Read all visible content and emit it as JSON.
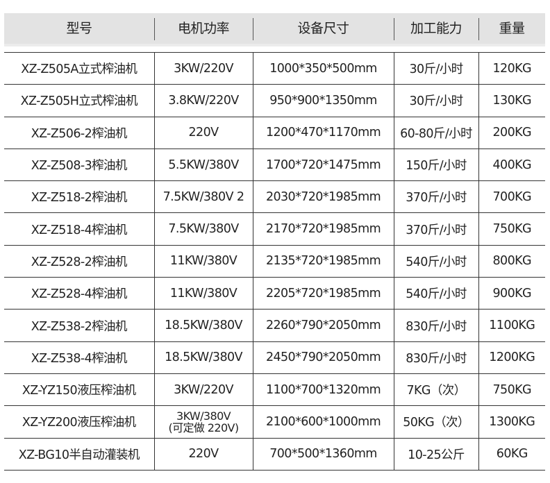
{
  "headers": [
    "型号",
    "电机功率",
    "设备尺寸",
    "加工能力",
    "重量"
  ],
  "rows": [
    [
      "XZ-Z505A立式榨油机",
      "3KW/220V",
      "1000*350*500mm",
      "30斤/小时",
      "120KG"
    ],
    [
      "XZ-Z505H立式榨油机",
      "3.8KW/220V",
      "950*900*1350mm",
      "30斤/小时",
      "130KG"
    ],
    [
      "XZ-Z506-2榨油机",
      "220V",
      "1200*470*1170mm",
      "60-80斤/小时",
      "200KG"
    ],
    [
      "XZ-Z508-3榨油机",
      "5.5KW/380V",
      "1700*720*1475mm",
      "150斤/小时",
      "400KG"
    ],
    [
      "XZ-Z518-2榨油机",
      "7.5KW/380V 2",
      "2030*720*1985mm",
      "370斤/小时",
      "700KG"
    ],
    [
      "XZ-Z518-4榨油机",
      "7.5KW/380V",
      "2170*720*1985mm",
      "370斤/小时",
      "750KG"
    ],
    [
      "XZ-Z528-2榨油机",
      "11KW/380V",
      "2135*720*1985mm",
      "540斤/小时",
      "800KG"
    ],
    [
      "XZ-Z528-4榨油机",
      "11KW/380V",
      "2205*720*1985mm",
      "540斤/小时",
      "900KG"
    ],
    [
      "XZ-Z538-2榨油机",
      "18.5KW/380V",
      "2260*790*2050mm",
      "830斤/小时",
      "1100KG"
    ],
    [
      "XZ-Z538-4榨油机",
      "18.5KW/380V",
      "2450*790*2050mm",
      "830斤/小时",
      "1200KG"
    ],
    [
      "XZ-YZ150液压榨油机",
      "3KW/220V",
      "1100*700*1320mm",
      "7KG（次）",
      "750KG"
    ],
    [
      "XZ-YZ200液压榨油机",
      "3KW/380V\n(可定做 220V)",
      "2100*600*1000mm",
      "50KG（次）",
      "1300KG"
    ],
    [
      "XZ-BG10半自动灌装机",
      "220V",
      "700*500*1360mm",
      "10-25公斤",
      "60KG"
    ]
  ]
}
